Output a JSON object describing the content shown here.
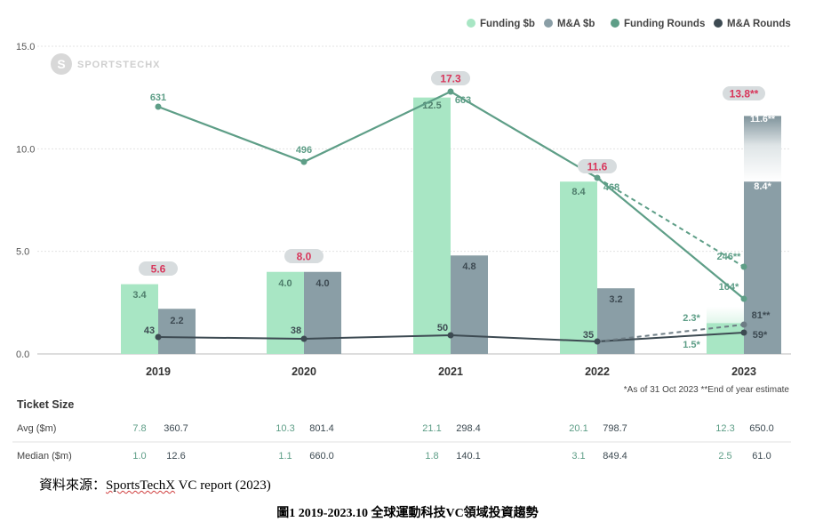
{
  "chart_data": {
    "type": "bar",
    "categories": [
      "2019",
      "2020",
      "2021",
      "2022",
      "2023"
    ],
    "ylim": [
      0,
      15
    ],
    "yticks": [
      "0.0",
      "5.0",
      "10.0",
      "15.0"
    ],
    "grid": true,
    "legend_position": "top-right",
    "watermark": "SPORTSTECHX",
    "legend": [
      {
        "name": "Funding $b",
        "color": "#a8e6c4"
      },
      {
        "name": "M&A $b",
        "color": "#8a9ea6"
      },
      {
        "name": "Funding Rounds",
        "color": "#5e9e87"
      },
      {
        "name": "M&A Rounds",
        "color": "#3d4a52"
      }
    ],
    "series": [
      {
        "name": "Funding $b",
        "type": "bar",
        "values": [
          3.4,
          4.0,
          12.5,
          8.4,
          2.3
        ],
        "labels": [
          "3.4",
          "4.0",
          "12.5",
          "8.4",
          "2.3*"
        ]
      },
      {
        "name": "M&A $b",
        "type": "bar",
        "values": [
          2.2,
          4.0,
          4.8,
          3.2,
          8.4
        ],
        "labels": [
          "2.2",
          "4.0",
          "4.8",
          "3.2",
          "8.4*"
        ]
      },
      {
        "name": "Funding Rounds",
        "type": "line",
        "values": [
          631,
          496,
          663,
          468,
          164
        ],
        "labels": [
          "631",
          "496",
          "663",
          "468",
          "164*"
        ]
      },
      {
        "name": "M&A Rounds",
        "type": "line",
        "values": [
          43,
          38,
          50,
          35,
          59
        ],
        "labels": [
          "43",
          "38",
          "50",
          "35",
          "59*"
        ]
      }
    ],
    "estimates_2023": {
      "ma_bar_estimate": 11.6,
      "ma_bar_label": "11.6**",
      "funding_rounds_estimate": 246,
      "funding_rounds_label": "246**",
      "ma_rounds_estimate": 81,
      "ma_rounds_label": "81**",
      "funding_bar_small_label": "1.5*"
    },
    "totals": [
      "5.6",
      "8.0",
      "17.3",
      "11.6",
      "13.8**"
    ],
    "footnote": "*As of 31 Oct 2023  **End of year estimate",
    "ticket_size": {
      "title": "Ticket Size",
      "rows": [
        {
          "label": "Avg ($m)",
          "funding": [
            "7.8",
            "10.3",
            "21.1",
            "20.1",
            "12.3"
          ],
          "ma": [
            "360.7",
            "801.4",
            "298.4",
            "798.7",
            "650.0"
          ]
        },
        {
          "label": "Median ($m)",
          "funding": [
            "1.0",
            "1.1",
            "1.8",
            "3.1",
            "2.5"
          ],
          "ma": [
            "12.6",
            "660.0",
            "140.1",
            "849.4",
            "61.0"
          ]
        }
      ]
    }
  },
  "source_label": "資料來源：",
  "source_text": "SportsTechX",
  "source_rest": " VC report (2023)",
  "figure_caption": "圖1  2019-2023.10 全球運動科技VC領域投資趨勢"
}
